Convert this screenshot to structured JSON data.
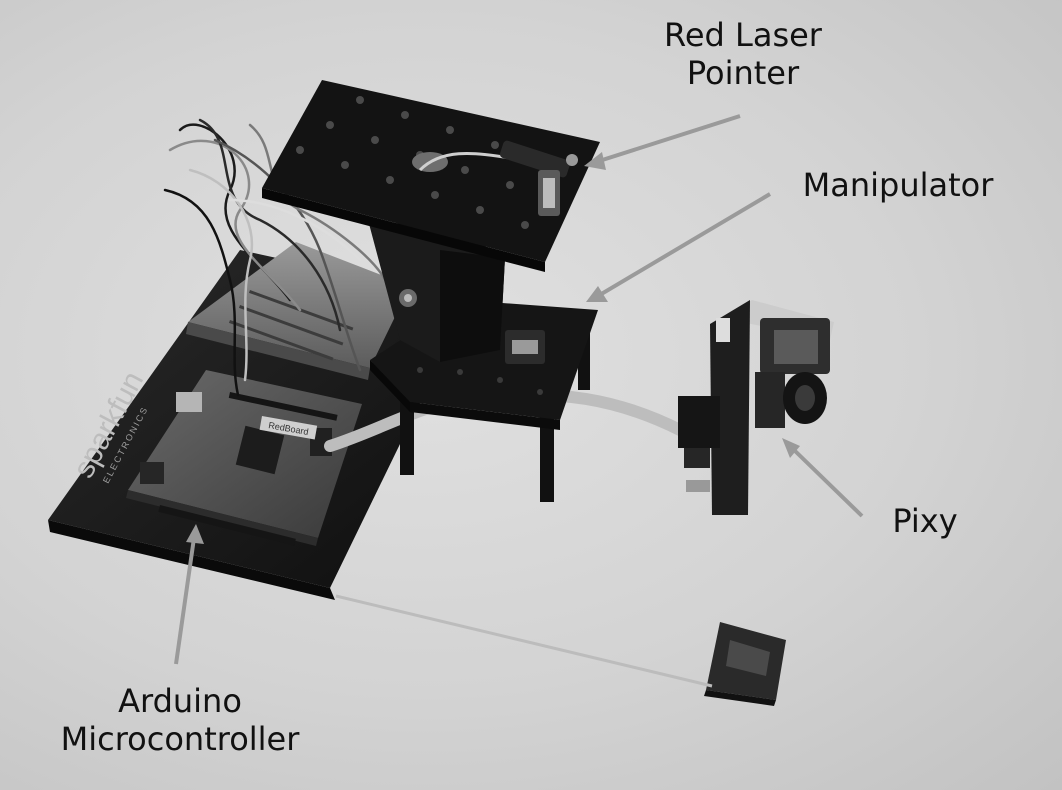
{
  "labels": {
    "laser_line1": "Red Laser",
    "laser_line2": "Pointer",
    "manipulator": "Manipulator",
    "pixy": "Pixy",
    "arduino_line1": "Arduino",
    "arduino_line2": "Microcontroller"
  },
  "board_logo": {
    "brand": "sparkfun",
    "sub": "ELECTRONICS",
    "board_name": "RedBoard"
  },
  "colors": {
    "background": "#d6d6d6",
    "hardware": "#1a1a1a",
    "arrow": "#9a9a9a",
    "text": "#111111"
  }
}
